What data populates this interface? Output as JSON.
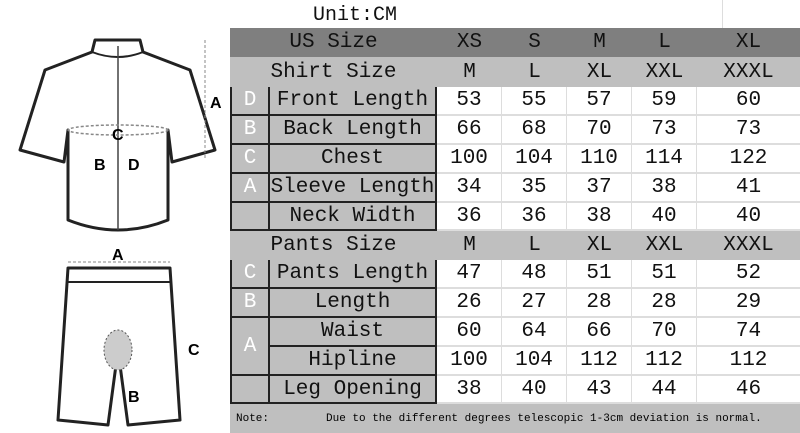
{
  "unit": "Unit:CM",
  "us_size": {
    "label": "US Size",
    "values": [
      "XS",
      "S",
      "M",
      "L",
      "XL"
    ]
  },
  "shirt": {
    "label": "Shirt Size",
    "values": [
      "M",
      "L",
      "XL",
      "XXL",
      "XXXL"
    ],
    "rows": [
      {
        "letter": "D",
        "label": "Front Length",
        "values": [
          "53",
          "55",
          "57",
          "59",
          "60"
        ]
      },
      {
        "letter": "B",
        "label": "Back Length",
        "values": [
          "66",
          "68",
          "70",
          "73",
          "73"
        ]
      },
      {
        "letter": "C",
        "label": "Chest",
        "values": [
          "100",
          "104",
          "110",
          "114",
          "122"
        ]
      },
      {
        "letter": "A",
        "label": "Sleeve Length",
        "values": [
          "34",
          "35",
          "37",
          "38",
          "41"
        ]
      },
      {
        "letter": "",
        "label": "Neck Width",
        "values": [
          "36",
          "36",
          "38",
          "40",
          "40"
        ]
      }
    ]
  },
  "pants": {
    "label": "Pants Size",
    "values": [
      "M",
      "L",
      "XL",
      "XXL",
      "XXXL"
    ],
    "rows": [
      {
        "letter": "C",
        "label": "Pants Length",
        "values": [
          "47",
          "48",
          "51",
          "51",
          "52"
        ]
      },
      {
        "letter": "B",
        "label": "Length",
        "values": [
          "26",
          "27",
          "28",
          "28",
          "29"
        ]
      },
      {
        "letter": "A",
        "label": "Waist",
        "values": [
          "60",
          "64",
          "66",
          "70",
          "74"
        ]
      },
      {
        "letter": "",
        "label": "Hipline",
        "values": [
          "100",
          "104",
          "112",
          "112",
          "112"
        ]
      },
      {
        "letter": "",
        "label": "Leg Opening",
        "values": [
          "38",
          "40",
          "43",
          "44",
          "46"
        ]
      }
    ]
  },
  "note": {
    "label": "Note:",
    "text": "Due to the different degrees telescopic 1-3cm deviation is normal."
  },
  "diagram": {
    "jersey_labels": [
      "A",
      "B",
      "C",
      "D"
    ],
    "shorts_labels": [
      "A",
      "B",
      "C"
    ]
  }
}
